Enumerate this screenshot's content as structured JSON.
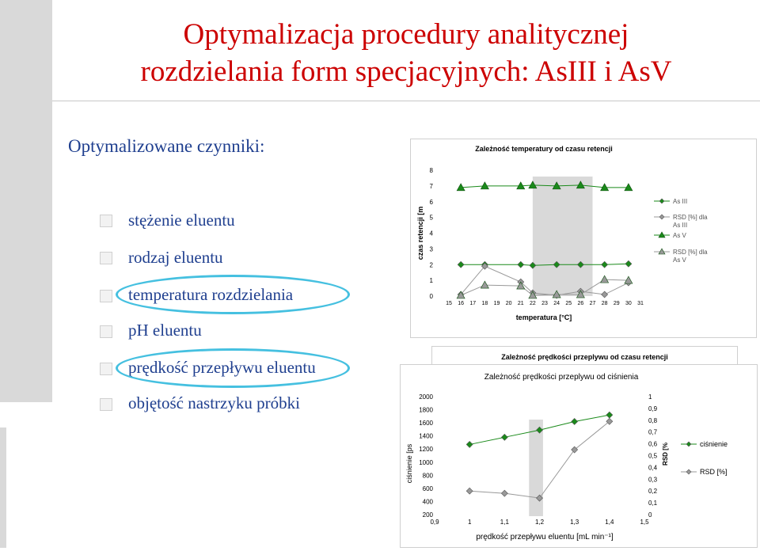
{
  "title_line1": "Optymalizacja procedury analitycznej",
  "title_line2": "rozdzielania  form specjacyjnych: AsIII i AsV",
  "subtitle": "Optymalizowane czynniki:",
  "bullets": [
    "stężenie eluentu",
    "rodzaj eluentu",
    "temperatura rozdzielania",
    "pH eluentu",
    "prędkość przepływu eluentu",
    "objętość nastrzyku próbki"
  ],
  "colors": {
    "title": "#cc0000",
    "text": "#1f3f8f",
    "highlight": "#45c0e0",
    "series_green": "#1a8a1a",
    "series_gray": "#999999"
  },
  "chart_data": [
    {
      "type": "line",
      "title": "Zależność temperatury od czasu retencji",
      "xlabel": "temperatura [°C]",
      "ylabel": "czas retencji [m",
      "ylim": [
        0,
        8
      ],
      "xlim": [
        15,
        31
      ],
      "x_ticks": [
        "15",
        "16",
        "17",
        "18",
        "19",
        "20",
        "21",
        "22",
        "23",
        "24",
        "25",
        "26",
        "27",
        "28",
        "29",
        "30",
        "31"
      ],
      "y_ticks": [
        "0",
        "1",
        "2",
        "3",
        "4",
        "5",
        "6",
        "7",
        "8"
      ],
      "legend": [
        "As III",
        "RSD [%] dla As III",
        "As V",
        "RSD [%] dla As V"
      ],
      "legend_position": "right",
      "highlight_band": [
        22,
        27
      ],
      "series": [
        {
          "name": "As III",
          "marker": "diamond",
          "color": "#1a8a1a",
          "x": [
            16,
            18,
            21,
            22,
            24,
            26,
            28,
            30
          ],
          "y": [
            2.0,
            2.0,
            2.0,
            1.95,
            2.0,
            2.0,
            2.0,
            2.05
          ]
        },
        {
          "name": "RSD [%] dla As III",
          "marker": "diamond",
          "color": "#999999",
          "x": [
            16,
            18,
            21,
            22,
            24,
            26,
            28,
            30
          ],
          "y": [
            0.1,
            1.9,
            0.9,
            0.2,
            0.05,
            0.3,
            0.1,
            0.85
          ]
        },
        {
          "name": "As V",
          "marker": "triangle",
          "color": "#1a8a1a",
          "x": [
            16,
            18,
            21,
            22,
            24,
            26,
            28,
            30
          ],
          "y": [
            6.9,
            7.0,
            7.0,
            7.05,
            7.0,
            7.05,
            6.9,
            6.9
          ]
        },
        {
          "name": "RSD [%] dla As V",
          "marker": "triangle",
          "color": "#999999",
          "x": [
            16,
            18,
            21,
            22,
            24,
            26,
            28,
            30
          ],
          "y": [
            0.05,
            0.7,
            0.65,
            0.05,
            0.1,
            0.1,
            1.05,
            1.0
          ]
        }
      ]
    },
    {
      "type": "line",
      "title_back": "Zależność prędkości przeplywu od czasu retencji",
      "title": "Zależność prędkości przeplywu od ciśnienia",
      "xlabel": "prędkość przepływu eluentu [mL min⁻¹]",
      "ylabel": "ciśnienie [ps",
      "ylabel_right": "RSD [%",
      "xlim": [
        0.9,
        1.5
      ],
      "ylim": [
        200,
        2000
      ],
      "ylim_right": [
        0,
        1
      ],
      "x_ticks": [
        "0,9",
        "1",
        "1,1",
        "1,2",
        "1,3",
        "1,4",
        "1,5"
      ],
      "y_ticks": [
        "200",
        "400",
        "600",
        "800",
        "1000",
        "1200",
        "1400",
        "1600",
        "1800",
        "2000"
      ],
      "y_ticks_right": [
        "0",
        "0,1",
        "0,2",
        "0,3",
        "0,4",
        "0,5",
        "0,6",
        "0,7",
        "0,8",
        "0,9",
        "1"
      ],
      "legend": [
        "ciśnienie",
        "RSD [%]"
      ],
      "legend_position": "right",
      "highlight_band": [
        1.17,
        1.21
      ],
      "series": [
        {
          "name": "ciśnienie",
          "axis": "left",
          "marker": "diamond",
          "color": "#1a8a1a",
          "x": [
            1.0,
            1.1,
            1.2,
            1.3,
            1.4
          ],
          "y": [
            1270,
            1380,
            1490,
            1620,
            1720
          ]
        },
        {
          "name": "RSD [%]",
          "axis": "right",
          "marker": "diamond",
          "color": "#999999",
          "x": [
            1.0,
            1.1,
            1.2,
            1.3,
            1.4
          ],
          "y": [
            0.2,
            0.18,
            0.14,
            0.55,
            0.79
          ]
        }
      ]
    }
  ]
}
